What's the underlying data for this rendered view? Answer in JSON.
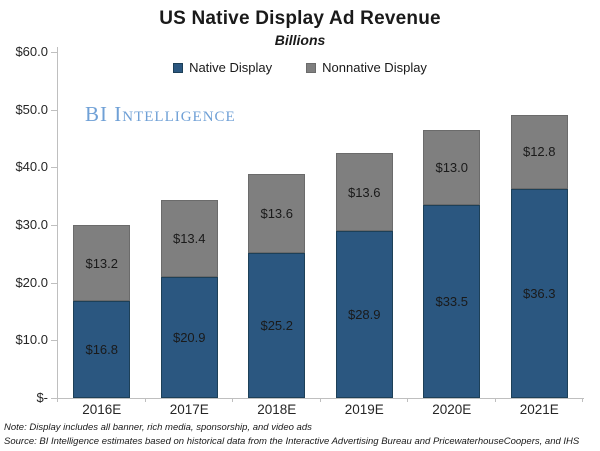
{
  "header": {
    "title": "US Native Display Ad Revenue",
    "subtitle": "Billions"
  },
  "logo": {
    "part1": "BI ",
    "part2": "Intelligence",
    "color": "#6FA0D6"
  },
  "chart_data": {
    "type": "bar",
    "stacked": true,
    "title": "US Native Display Ad Revenue",
    "subtitle": "Billions",
    "categories": [
      "2016E",
      "2017E",
      "2018E",
      "2019E",
      "2020E",
      "2021E"
    ],
    "series": [
      {
        "name": "Native Display",
        "color": "#2B5780",
        "border_color": "#1D4058",
        "values": [
          16.8,
          20.9,
          25.2,
          28.9,
          33.5,
          36.3
        ],
        "labels": [
          "$16.8",
          "$20.9",
          "$25.2",
          "$28.9",
          "$33.5",
          "$36.3"
        ]
      },
      {
        "name": "Nonnative Display",
        "color": "#7F7F7F",
        "border_color": "#6B6B6B",
        "values": [
          13.2,
          13.4,
          13.6,
          13.6,
          13.0,
          12.8
        ],
        "labels": [
          "$13.2",
          "$13.4",
          "$13.6",
          "$13.6",
          "$13.0",
          "$12.8"
        ]
      }
    ],
    "ylim": [
      0,
      60
    ],
    "y_tick_step": 10,
    "y_tick_labels": [
      "$60.0",
      "$50.0",
      "$40.0",
      "$30.0",
      "$20.0",
      "$10.0",
      "$-"
    ],
    "grid": false,
    "legend_position": "top"
  },
  "footnotes": {
    "line1": "Note: Display includes all banner, rich media, sponsorship, and video ads",
    "line2": "Source: BI Intelligence estimates based on historical data from the Interactive Advertising Bureau and PricewaterhouseCoopers, and IHS"
  }
}
